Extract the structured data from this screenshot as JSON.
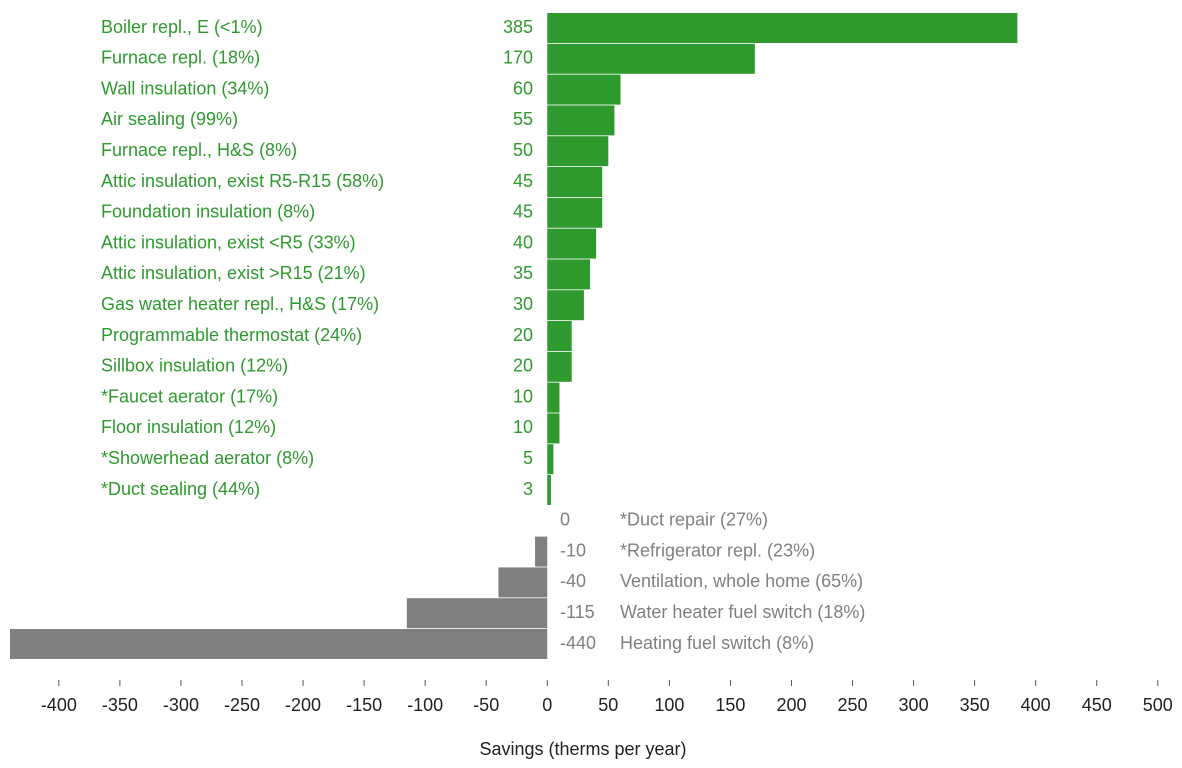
{
  "chart_data": {
    "type": "bar",
    "orientation": "horizontal",
    "x_label": "Savings (therms per year)",
    "categories": [
      "Boiler repl., E (<1%)",
      "Furnace repl.  (18%)",
      "Wall insulation  (34%)",
      "Air sealing  (99%)",
      "Furnace repl., H&S  (8%)",
      "Attic insulation, exist R5-R15  (58%)",
      "Foundation insulation  (8%)",
      "Attic insulation, exist <R5  (33%)",
      "Attic insulation, exist >R15  (21%)",
      "Gas water heater repl., H&S  (17%)",
      "Programmable thermostat  (24%)",
      "Sillbox insulation  (12%)",
      "*Faucet aerator  (17%)",
      "Floor insulation  (12%)",
      "*Showerhead aerator  (8%)",
      "*Duct sealing  (44%)",
      "*Duct repair  (27%)",
      "*Refrigerator repl.  (23%)",
      "Ventilation, whole home  (65%)",
      "Water heater fuel switch  (18%)",
      "Heating fuel switch  (8%)"
    ],
    "values": [
      385,
      170,
      60,
      55,
      50,
      45,
      45,
      40,
      35,
      30,
      20,
      20,
      10,
      10,
      5,
      3,
      0,
      -10,
      -40,
      -115,
      -440
    ],
    "color": "#2e9a2e",
    "negative_color": "#808080",
    "xlim": [
      -440,
      510
    ],
    "xticks": [
      -400,
      -350,
      -300,
      -250,
      -200,
      -150,
      -100,
      -50,
      0,
      50,
      100,
      150,
      200,
      250,
      300,
      350,
      400,
      450,
      500
    ]
  }
}
